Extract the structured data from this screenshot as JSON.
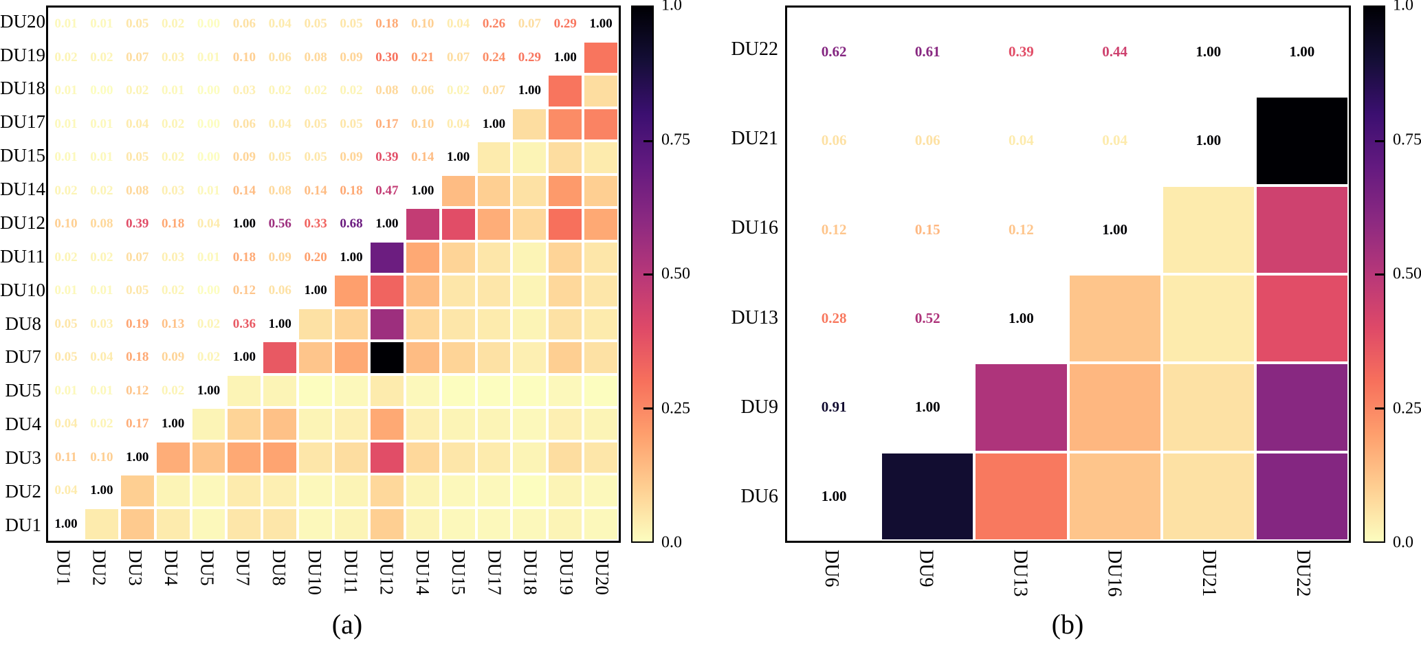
{
  "figure": {
    "background": "#ffffff",
    "captions": {
      "a": "(a)",
      "b": "(b)"
    }
  },
  "chart_data": [
    {
      "type": "heatmap",
      "panel": "a",
      "caption": "(a)",
      "description": "Lower-triangle numeric correlation values (text colored by colormap) with mirrored colored squares above/right of the 1.00 diagonal; rows displayed DU20 (top) to DU1 (bottom), columns DU1 (left) to DU20 (right)",
      "labels": [
        "DU1",
        "DU2",
        "DU3",
        "DU4",
        "DU5",
        "DU7",
        "DU8",
        "DU10",
        "DU11",
        "DU12",
        "DU14",
        "DU15",
        "DU17",
        "DU18",
        "DU19",
        "DU20"
      ],
      "matrix_lower_triangle": {
        "DU1": [
          1.0
        ],
        "DU2": [
          0.04,
          1.0
        ],
        "DU3": [
          0.11,
          0.1,
          1.0
        ],
        "DU4": [
          0.04,
          0.02,
          0.17,
          1.0
        ],
        "DU5": [
          0.01,
          0.01,
          0.12,
          0.02,
          1.0
        ],
        "DU7": [
          0.05,
          0.04,
          0.18,
          0.09,
          0.02,
          1.0
        ],
        "DU8": [
          0.05,
          0.03,
          0.19,
          0.13,
          0.02,
          0.36,
          1.0
        ],
        "DU10": [
          0.01,
          0.01,
          0.05,
          0.02,
          0.0,
          0.12,
          0.06,
          1.0
        ],
        "DU11": [
          0.02,
          0.02,
          0.07,
          0.03,
          0.01,
          0.18,
          0.09,
          0.2,
          1.0
        ],
        "DU12": [
          0.1,
          0.08,
          0.39,
          0.18,
          0.04,
          1.0,
          0.56,
          0.33,
          0.68,
          1.0
        ],
        "DU14": [
          0.02,
          0.02,
          0.08,
          0.03,
          0.01,
          0.14,
          0.08,
          0.14,
          0.18,
          0.47,
          1.0
        ],
        "DU15": [
          0.01,
          0.01,
          0.05,
          0.02,
          0.0,
          0.09,
          0.05,
          0.05,
          0.09,
          0.39,
          0.14,
          1.0
        ],
        "DU17": [
          0.01,
          0.01,
          0.04,
          0.02,
          0.0,
          0.06,
          0.04,
          0.05,
          0.05,
          0.17,
          0.1,
          0.04,
          1.0
        ],
        "DU18": [
          0.01,
          0.0,
          0.02,
          0.01,
          0.0,
          0.03,
          0.02,
          0.02,
          0.02,
          0.08,
          0.06,
          0.02,
          0.07,
          1.0
        ],
        "DU19": [
          0.02,
          0.02,
          0.07,
          0.03,
          0.01,
          0.1,
          0.06,
          0.08,
          0.09,
          0.3,
          0.21,
          0.07,
          0.24,
          0.29,
          1.0
        ],
        "DU20": [
          0.01,
          0.01,
          0.05,
          0.02,
          0.0,
          0.06,
          0.04,
          0.05,
          0.05,
          0.18,
          0.1,
          0.04,
          0.26,
          0.07,
          0.29,
          1.0
        ]
      },
      "value_range": [
        0,
        1
      ],
      "colorbar_tick_labels": [
        "1.0",
        "0.75",
        "0.50",
        "0.25",
        "0.0"
      ],
      "legend_position": "right-colorbar",
      "grid": false
    },
    {
      "type": "heatmap",
      "panel": "b",
      "caption": "(b)",
      "description": "Lower-triangle numeric correlation values with mirrored colored squares above the 1.00 diagonal; rows displayed DU22 (top) to DU6 (bottom), columns DU6 (left) to DU22 (right)",
      "labels": [
        "DU6",
        "DU9",
        "DU13",
        "DU16",
        "DU21",
        "DU22"
      ],
      "matrix_lower_triangle": {
        "DU6": [
          1.0
        ],
        "DU9": [
          0.91,
          1.0
        ],
        "DU13": [
          0.28,
          0.52,
          1.0
        ],
        "DU16": [
          0.12,
          0.15,
          0.12,
          1.0
        ],
        "DU21": [
          0.06,
          0.06,
          0.04,
          0.04,
          1.0
        ],
        "DU22": [
          0.62,
          0.61,
          0.39,
          0.44,
          1.0,
          1.0
        ]
      },
      "value_range": [
        0,
        1
      ],
      "colorbar_tick_labels": [
        "1.0",
        "0.75",
        "0.50",
        "0.25",
        "0.0"
      ],
      "legend_position": "right-colorbar",
      "grid": false
    }
  ],
  "colormap": {
    "name": "magma_r",
    "stops_low_to_high_value": [
      "#FCFDBF",
      "#FECF92",
      "#FE9F6D",
      "#F7705C",
      "#DE4968",
      "#B73779",
      "#8C2981",
      "#641A80",
      "#3B0F70",
      "#140E36",
      "#000004"
    ]
  }
}
